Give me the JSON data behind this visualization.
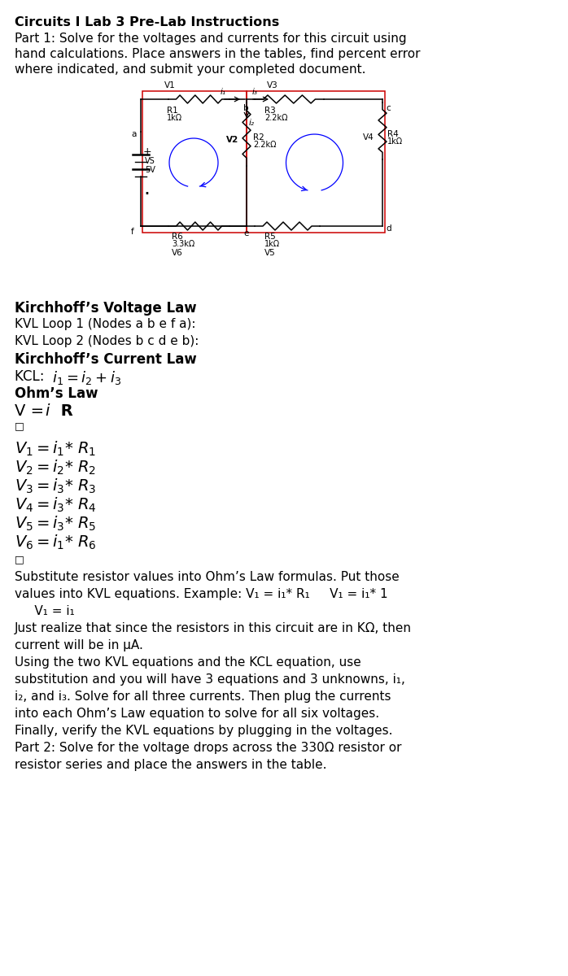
{
  "title": "Circuits I Lab 3 Pre-Lab Instructions",
  "bg_color": "#ffffff",
  "text_color": "#000000",
  "figsize": [
    6.98,
    12.0
  ],
  "dpi": 100,
  "intro_lines": [
    "Part 1: Solve for the voltages and currents for this circuit using",
    "hand calculations. Place answers in the tables, find percent error",
    "where indicated, and submit your completed document."
  ],
  "kvl_title": "Kirchhoff’s Voltage Law",
  "kvl_loop1": "KVL Loop 1 (Nodes a b e f a):",
  "kvl_loop2": "KVL Loop 2 (Nodes b c d e b):",
  "kcl_title": "Kirchhoff’s Current Law",
  "ohm_title": "Ohm’s Law",
  "para1": "Substitute resistor values into Ohm’s Law formulas. Put those",
  "para2": "values into KVL equations. Example: V₁ = i₁* R₁     V₁ = i₁* 1",
  "para3": "     V₁ = i₁",
  "para4": "Just realize that since the resistors in this circuit are in KΩ, then",
  "para5": "current will be in μA.",
  "para6": "Using the two KVL equations and the KCL equation, use",
  "para7": "substitution and you will have 3 equations and 3 unknowns, i₁,",
  "para8": "i₂, and i₃. Solve for all three currents. Then plug the currents",
  "para9": "into each Ohm’s Law equation to solve for all six voltages.",
  "para10": "Finally, verify the KVL equations by plugging in the voltages.",
  "para11": "Part 2: Solve for the voltage drops across the 330Ω resistor or",
  "para12": "resistor series and place the answers in the table."
}
